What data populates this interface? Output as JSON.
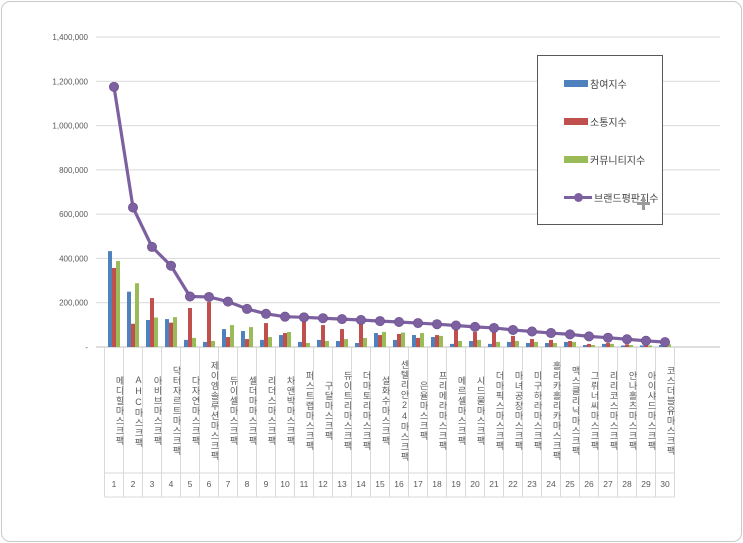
{
  "chart_data": {
    "type": "bar",
    "title": "",
    "xlabel": "",
    "ylabel": "",
    "ylim": [
      0,
      1400000
    ],
    "ytick_step": 200000,
    "ytick_labels_top_to_bottom": [
      "1,400,000",
      "1,200,000",
      "1,000,000",
      "800,000",
      "600,000",
      "400,000",
      "200,000",
      "-"
    ],
    "grid": true,
    "legend_position": "upper right",
    "categories": [
      "메디힐마스크팩",
      "AHC마스크팩",
      "아비브마스크팩",
      "닥터자르트마스크팩",
      "다자연마스크팩",
      "제이엠솔루션마스크팩",
      "듀이셀마스크팩",
      "셀더마마스크팩",
      "리더스마스크팩",
      "차앤박마스크팩",
      "퍼스트랩마스크팩",
      "구달마스크팩",
      "듀이트리마스크팩",
      "더마토리마스크팩",
      "설화수마스크팩",
      "센텔리안24마스크팩",
      "은율마스크팩",
      "프리메라마스크팩",
      "메르셀마스크팩",
      "시드물마스크팩",
      "더마픽스마스크팩",
      "마녀공장마스크팩",
      "미구하라마스크팩",
      "홀리카홀리카마스크팩",
      "맥스클리닉마스크팩",
      "그뤼너씨마스크팩",
      "리리코스마스크팩",
      "안나홀츠마스크팩",
      "아이샤드마스크팩",
      "코스더블유마스크팩"
    ],
    "rank_labels": [
      "1",
      "2",
      "3",
      "4",
      "5",
      "6",
      "7",
      "8",
      "9",
      "10",
      "11",
      "12",
      "13",
      "14",
      "15",
      "16",
      "17",
      "18",
      "19",
      "20",
      "21",
      "22",
      "23",
      "24",
      "25",
      "26",
      "27",
      "28",
      "29",
      "30"
    ],
    "series": [
      {
        "name": "참여지수",
        "type": "bar",
        "color": "#4F81BD",
        "values": [
          433000,
          250000,
          122000,
          126000,
          32000,
          23000,
          81000,
          72000,
          32000,
          54000,
          23000,
          32000,
          27000,
          18000,
          63000,
          32000,
          54000,
          45000,
          14000,
          27000,
          14000,
          23000,
          18000,
          18000,
          23000,
          9000,
          14000,
          7000,
          7000,
          9000
        ]
      },
      {
        "name": "소통지수",
        "type": "bar",
        "color": "#C0504D",
        "values": [
          357000,
          105000,
          221000,
          110000,
          176000,
          203000,
          45000,
          36000,
          108000,
          63000,
          122000,
          99000,
          81000,
          104000,
          54000,
          59000,
          41000,
          54000,
          95000,
          68000,
          86000,
          50000,
          36000,
          32000,
          27000,
          14000,
          18000,
          12000,
          10000,
          28000
        ]
      },
      {
        "name": "커뮤니티지수",
        "type": "bar",
        "color": "#9BBB59",
        "values": [
          388000,
          288000,
          133000,
          135000,
          41000,
          27000,
          99000,
          90000,
          45000,
          68000,
          18000,
          27000,
          36000,
          41000,
          68000,
          65000,
          63000,
          50000,
          27000,
          32000,
          23000,
          27000,
          23000,
          18000,
          23000,
          9000,
          14000,
          9000,
          7000,
          12000
        ]
      },
      {
        "name": "브랜드평판지수",
        "type": "line",
        "color": "#7D60A0",
        "values": [
          1175000,
          630000,
          452000,
          367000,
          228000,
          226000,
          205000,
          172000,
          150000,
          137000,
          134000,
          130000,
          126000,
          122000,
          117000,
          113000,
          108000,
          103000,
          97000,
          91000,
          86000,
          77000,
          70000,
          63000,
          57000,
          48000,
          42000,
          35000,
          28000,
          22000
        ]
      }
    ],
    "colors": {
      "gridline": "#D9D9D9",
      "axis_line": "#BFBFBF",
      "tick_text": "#595959",
      "legend_border": "#595959",
      "frame_border": "#C9C9C9"
    }
  }
}
